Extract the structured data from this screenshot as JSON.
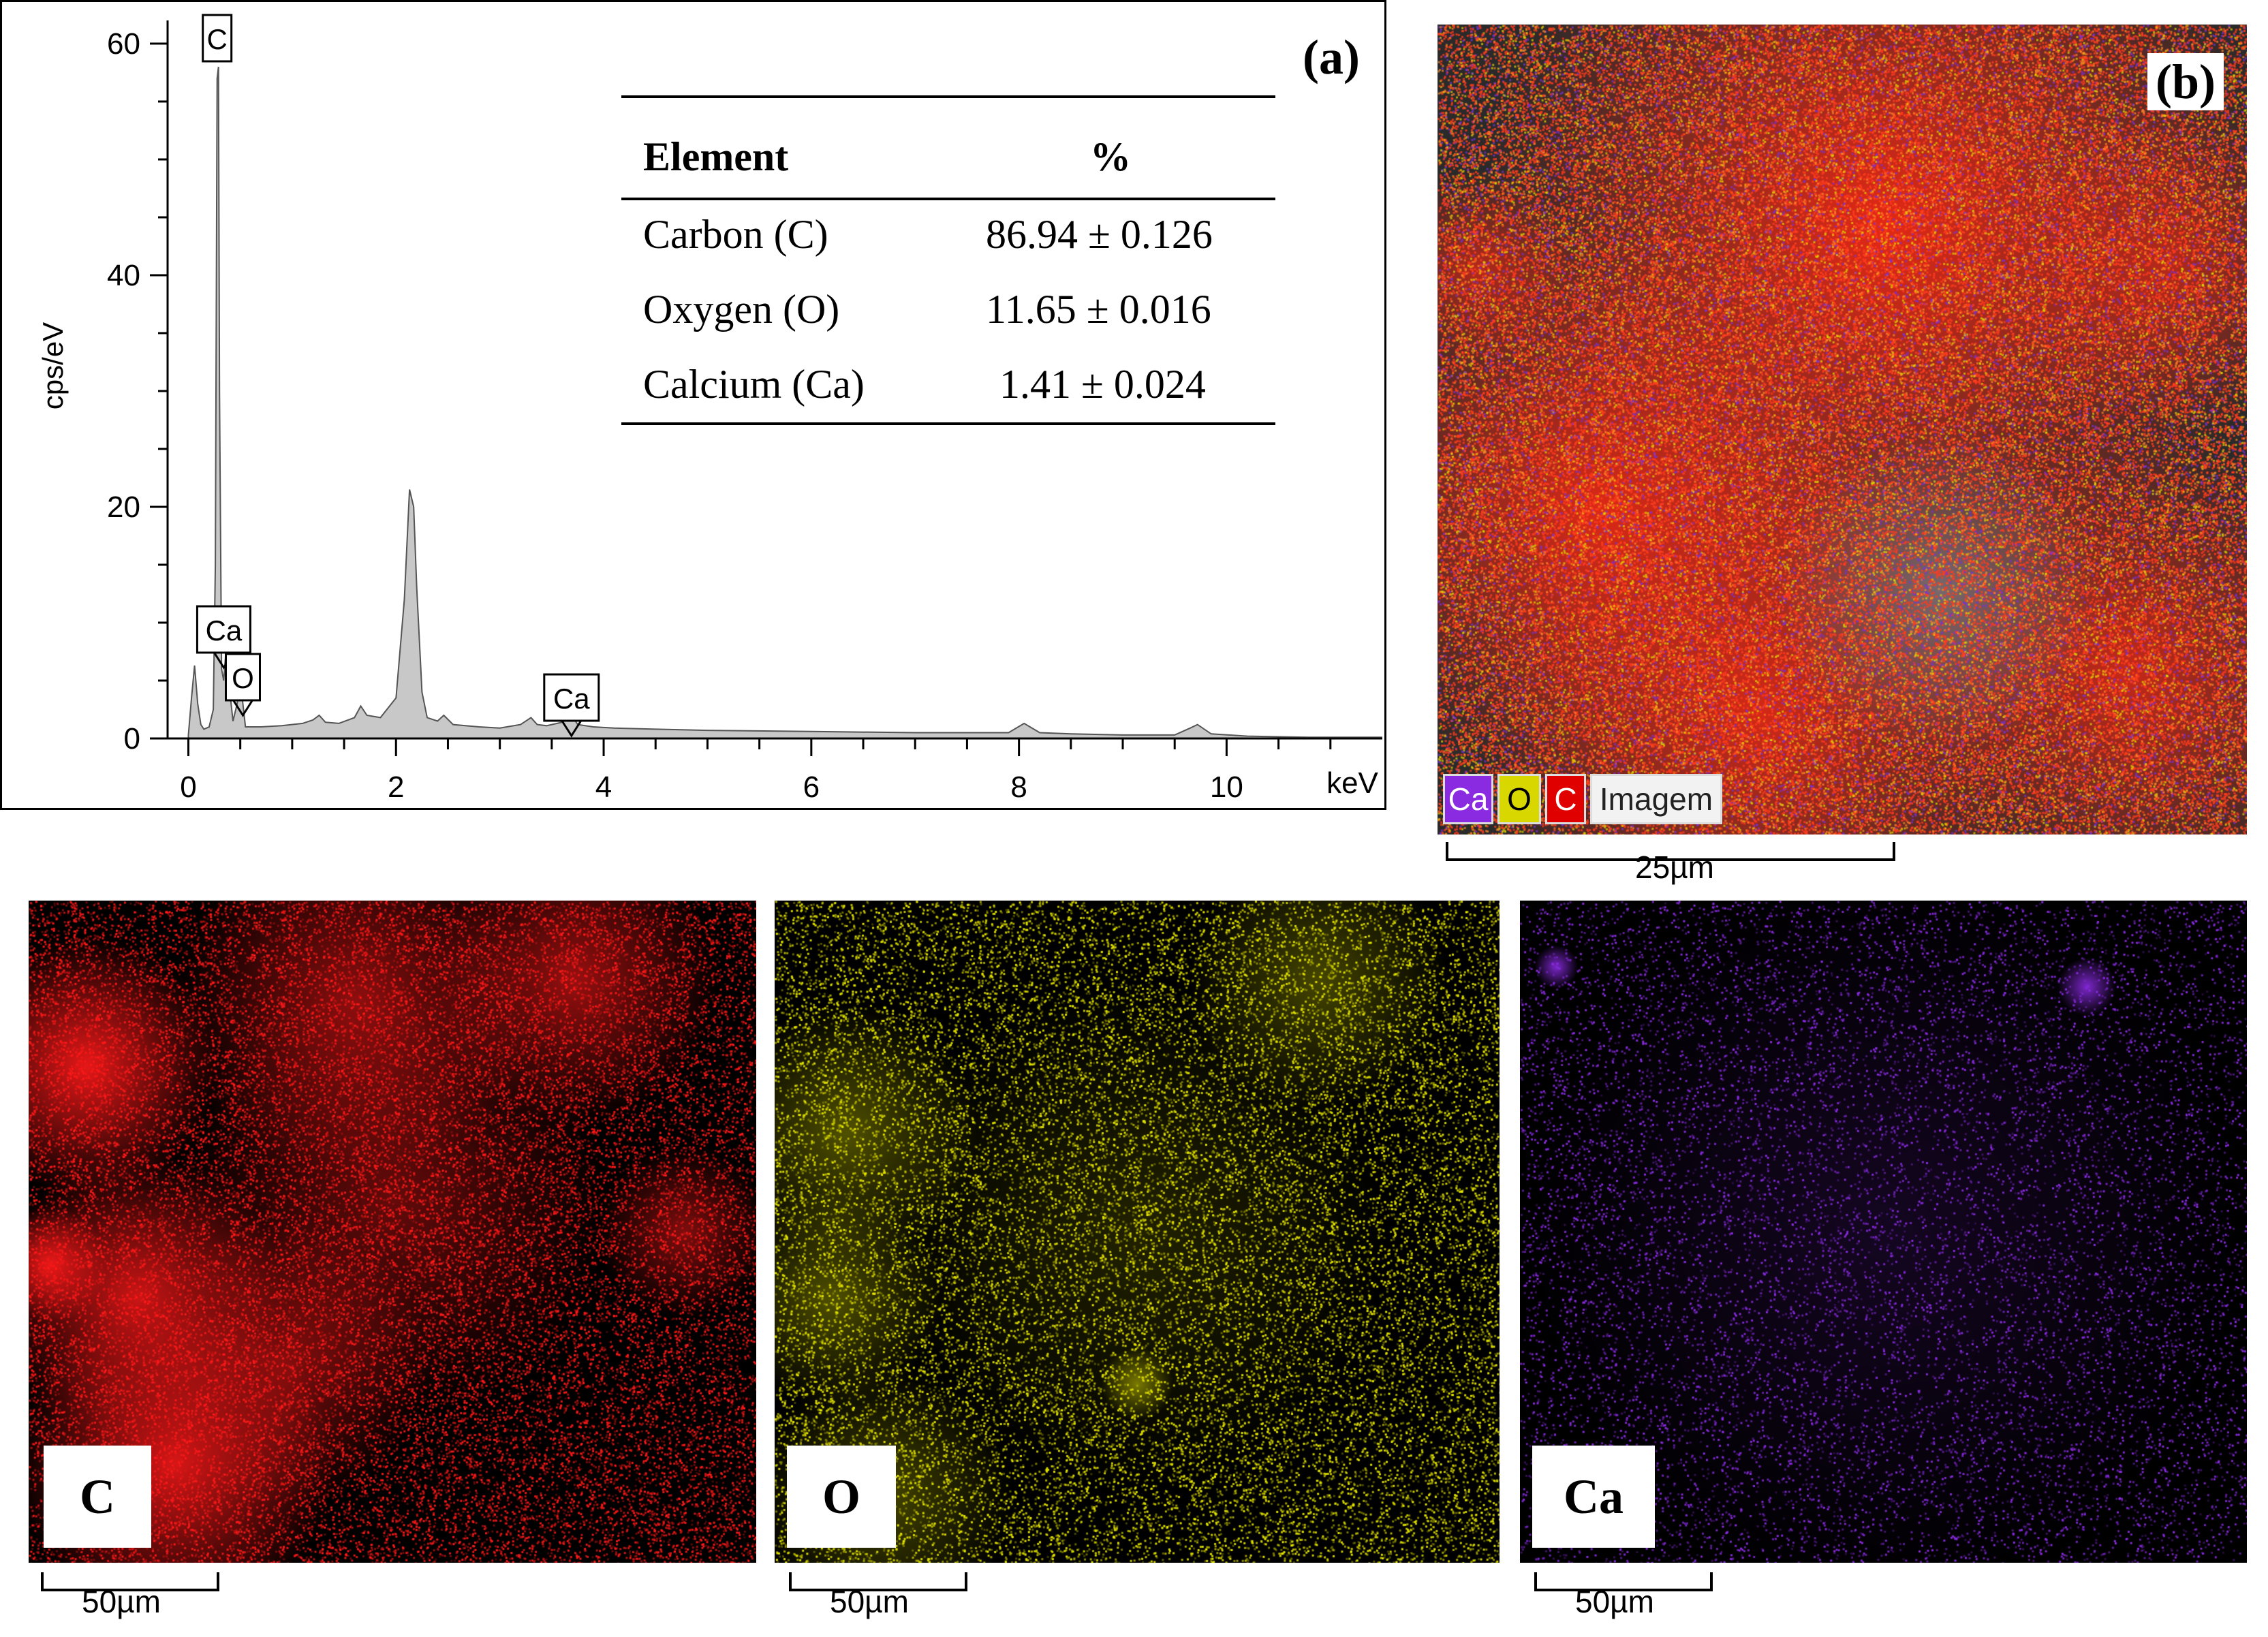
{
  "panels": {
    "a": "(a)",
    "b": "(b)"
  },
  "table": {
    "headers": [
      "Element",
      "%"
    ],
    "rows": [
      {
        "element": "Carbon (C)",
        "value": "86.94 ± 0.126"
      },
      {
        "element": "Oxygen (O)",
        "value": "11.65 ± 0.016"
      },
      {
        "element": "Calcium (Ca)",
        "value": "1.41 ± 0.024"
      }
    ]
  },
  "chart_data": {
    "type": "line",
    "title": "",
    "xlabel": "keV",
    "ylabel": "cps/eV",
    "xlim": [
      -0.2,
      11.5
    ],
    "ylim": [
      0,
      62
    ],
    "x_ticks": [
      0,
      2,
      4,
      6,
      8,
      10
    ],
    "y_ticks": [
      0,
      20,
      40,
      60
    ],
    "grid": false,
    "fill_color": "#c8c8c8",
    "series": [
      {
        "x": [
          0,
          0.03,
          0.06,
          0.09,
          0.12,
          0.15,
          0.2,
          0.24,
          0.26,
          0.277,
          0.29,
          0.3,
          0.32,
          0.34,
          0.37,
          0.4,
          0.43,
          0.47,
          0.5,
          0.525,
          0.55,
          0.6,
          0.7,
          0.9,
          1.1,
          1.2,
          1.26,
          1.32,
          1.45,
          1.6,
          1.66,
          1.72,
          1.85,
          2.0,
          2.08,
          2.13,
          2.17,
          2.2,
          2.25,
          2.3,
          2.4,
          2.46,
          2.55,
          2.8,
          3.0,
          3.2,
          3.3,
          3.36,
          3.45,
          3.6,
          3.69,
          3.75,
          3.9,
          4.1,
          4.5,
          5,
          6,
          7,
          7.9,
          8.05,
          8.2,
          8.5,
          9,
          9.5,
          9.65,
          9.72,
          9.85,
          10.2,
          10.8,
          11.5
        ],
        "y": [
          0.3,
          3.5,
          6.3,
          3.0,
          1.2,
          0.8,
          1.0,
          2.5,
          15,
          57,
          58,
          30,
          6,
          5,
          8.5,
          4,
          1.5,
          3.0,
          5.0,
          3.0,
          1.0,
          1.0,
          1.0,
          1.1,
          1.3,
          1.6,
          2.0,
          1.4,
          1.3,
          1.8,
          2.8,
          2.0,
          1.8,
          3.5,
          12,
          21.5,
          20,
          13,
          4,
          1.8,
          1.5,
          2.0,
          1.2,
          1.0,
          0.9,
          1.2,
          1.8,
          1.2,
          1.1,
          1.4,
          2.0,
          1.2,
          1.0,
          0.9,
          0.8,
          0.7,
          0.6,
          0.5,
          0.5,
          1.3,
          0.5,
          0.4,
          0.3,
          0.3,
          0.9,
          1.2,
          0.4,
          0.2,
          0.1,
          0.1
        ]
      }
    ],
    "annotations": [
      {
        "label": "C",
        "x": 0.277
      },
      {
        "label": "Ca",
        "x": 0.341
      },
      {
        "label": "O",
        "x": 0.525
      },
      {
        "label": "Ca",
        "x": 3.69
      }
    ]
  },
  "composite_map": {
    "legend": [
      "Ca",
      "O",
      "C",
      "Imagem"
    ],
    "legend_colors": [
      "#8a2be2",
      "#d8d800",
      "#e00000",
      "#ffffff"
    ],
    "scale": "25µm"
  },
  "element_maps": [
    {
      "label": "C",
      "color": "#ff1a1a",
      "scale": "50µm"
    },
    {
      "label": "O",
      "color": "#e6e600",
      "scale": "50µm"
    },
    {
      "label": "Ca",
      "color": "#8a2be2",
      "scale": "50µm"
    }
  ]
}
